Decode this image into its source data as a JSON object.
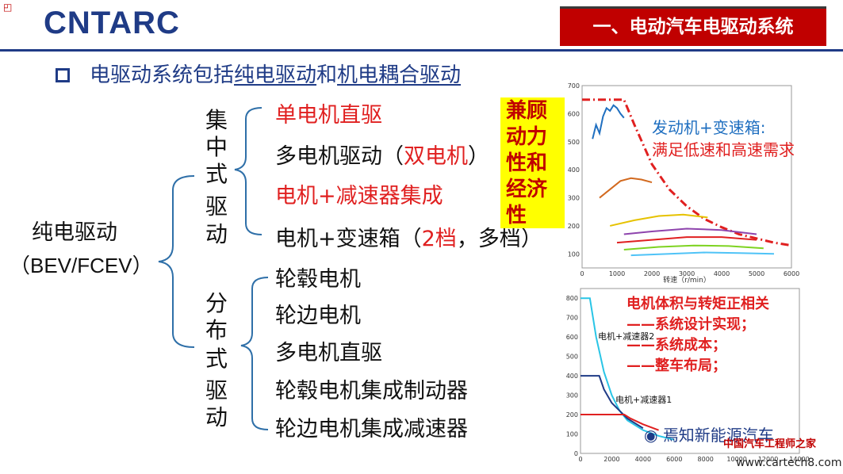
{
  "header": {
    "logo_text": "CNTARC",
    "title": "一、电动汽车电驱动系统",
    "brand_blue": "#1f3b86",
    "brand_red": "#c00000"
  },
  "subtitle": {
    "prefix": "电驱动系统包括",
    "link1": "纯电驱动",
    "mid": "和",
    "link2": "机电耦合驱动"
  },
  "root": {
    "label": "纯电驱动",
    "sub": "（BEV/FCEV）"
  },
  "centralized": {
    "label_chars": [
      "集",
      "中",
      "式",
      "驱",
      "动"
    ],
    "items": {
      "single_motor": "单电机直驱",
      "multi_motor_prefix": "多电机驱动（",
      "multi_motor_red": "双电机",
      "multi_motor_suffix": "）",
      "reducer": "电机+减速器集成",
      "gearbox_prefix": "电机+变速箱（",
      "gearbox_red": "2档",
      "gearbox_suffix": "，多档）"
    }
  },
  "distributed": {
    "label_chars": [
      "分",
      "布",
      "式",
      "驱",
      "动"
    ],
    "items": [
      "轮毂电机",
      "轮边电机",
      "多电机直驱",
      "轮毂电机集成制动器",
      "轮边电机集成减速器"
    ]
  },
  "callout": {
    "lines": [
      "兼顾",
      "动力",
      "性和",
      "经济",
      "性"
    ]
  },
  "chart1": {
    "xlabel": "转速（r/min）",
    "xticks": [
      "0",
      "1000",
      "2000",
      "3000",
      "4000",
      "5000",
      "6000"
    ],
    "yticks": [
      "100",
      "200",
      "300",
      "400",
      "500",
      "600",
      "700"
    ],
    "annotation_line1": "发动机+变速箱:",
    "annotation_line2": "满足低速和高速需求"
  },
  "chart_data": [
    {
      "type": "line",
      "title": "",
      "xlabel": "转速（r/min）",
      "ylabel": "",
      "xlim": [
        0,
        6000
      ],
      "ylim": [
        50,
        700
      ],
      "series": [
        {
          "color": "#e02020",
          "style": "dashdot",
          "x": [
            0,
            1200,
            1500,
            2000,
            2500,
            3000,
            3500,
            4000,
            4500,
            5000,
            5500,
            6000
          ],
          "y": [
            650,
            650,
            560,
            420,
            330,
            270,
            225,
            195,
            170,
            155,
            140,
            130
          ]
        },
        {
          "color": "#1f6fc0",
          "x": [
            300,
            400,
            500,
            600,
            700,
            800,
            900,
            1000,
            1100,
            1200
          ],
          "y": [
            510,
            560,
            530,
            590,
            620,
            610,
            630,
            620,
            600,
            585
          ]
        },
        {
          "color": "#d2691e",
          "x": [
            500,
            800,
            1100,
            1400,
            1700,
            2000
          ],
          "y": [
            300,
            330,
            360,
            370,
            365,
            355
          ]
        },
        {
          "color": "#e6c200",
          "x": [
            800,
            1500,
            2200,
            2900,
            3600
          ],
          "y": [
            200,
            220,
            235,
            240,
            230
          ]
        },
        {
          "color": "#8e44ad",
          "x": [
            1200,
            2000,
            3000,
            4000,
            5000
          ],
          "y": [
            170,
            180,
            190,
            185,
            170
          ]
        },
        {
          "color": "#e02020",
          "x": [
            1000,
            2000,
            3000,
            4000,
            5000
          ],
          "y": [
            140,
            150,
            160,
            160,
            150
          ]
        },
        {
          "color": "#7ed321",
          "x": [
            1200,
            2200,
            3200,
            4200,
            5200
          ],
          "y": [
            115,
            125,
            130,
            128,
            120
          ]
        },
        {
          "color": "#4fc3f7",
          "x": [
            1400,
            2500,
            3500,
            4500,
            5500
          ],
          "y": [
            95,
            100,
            105,
            103,
            100
          ]
        }
      ]
    },
    {
      "type": "line",
      "title": "",
      "xlabel": "",
      "ylabel": "",
      "xlim": [
        0,
        14000
      ],
      "ylim": [
        0,
        850
      ],
      "series": [
        {
          "name": "电机+减速器2",
          "color": "#29c5e6",
          "x": [
            0,
            600,
            1000,
            1500,
            2000,
            2500,
            3000,
            4000,
            5000,
            6000
          ],
          "y": [
            800,
            800,
            600,
            420,
            300,
            220,
            170,
            120,
            90,
            70
          ]
        },
        {
          "color": "#1f3b86",
          "x": [
            0,
            1200,
            1500,
            2000,
            3000,
            4000
          ],
          "y": [
            400,
            400,
            330,
            260,
            180,
            130
          ]
        },
        {
          "name": "电机+减速器1",
          "color": "#e02020",
          "x": [
            0,
            2800,
            3200,
            4000,
            5000
          ],
          "y": [
            200,
            200,
            180,
            150,
            120
          ]
        }
      ]
    }
  ],
  "chart2": {
    "xticks": [
      "0",
      "2000",
      "4000",
      "6000",
      "8000",
      "10000",
      "12000",
      "14000"
    ],
    "yticks": [
      "0",
      "100",
      "200",
      "300",
      "400",
      "500",
      "600",
      "700",
      "800"
    ],
    "label_a": "电机+减速器2",
    "label_b": "电机+减速器1",
    "ann_title": "电机体积与转矩正相关",
    "ann_1": "——系统设计实现；",
    "ann_2": "——系统成本；",
    "ann_3": "——整车布局；"
  },
  "watermark": {
    "line1": "焉知新能源汽车",
    "line2": "中国汽车工程师之家",
    "line3": "www.cartech8.com"
  }
}
